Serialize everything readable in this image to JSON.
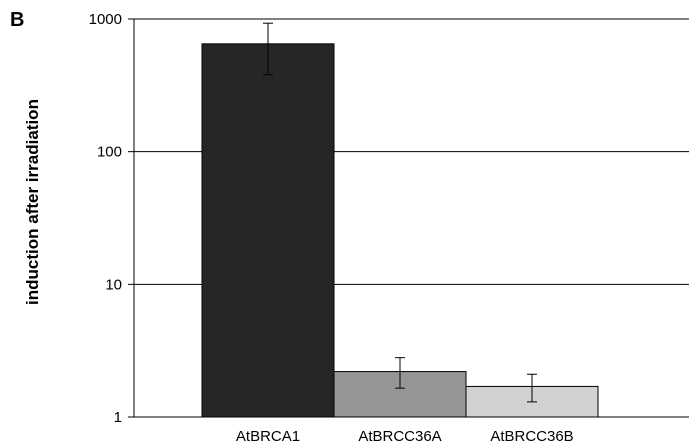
{
  "panel_label": "B",
  "chart_data": {
    "type": "bar",
    "title": "",
    "xlabel": "",
    "ylabel": "induction after irradiation",
    "yscale": "log",
    "ylim": [
      1,
      1000
    ],
    "yticks": [
      1,
      10,
      100,
      1000
    ],
    "ytick_labels": [
      "1",
      "10",
      "100",
      "1000"
    ],
    "grid": "horizontal major lines",
    "categories": [
      "AtBRCA1",
      "AtBRCC36A",
      "AtBRCC36B"
    ],
    "values": [
      650,
      2.2,
      1.7
    ],
    "error_low": [
      380,
      1.65,
      1.3
    ],
    "error_high": [
      930,
      2.8,
      2.1
    ],
    "colors": [
      "#262626",
      "#969696",
      "#d2d2d2"
    ]
  }
}
